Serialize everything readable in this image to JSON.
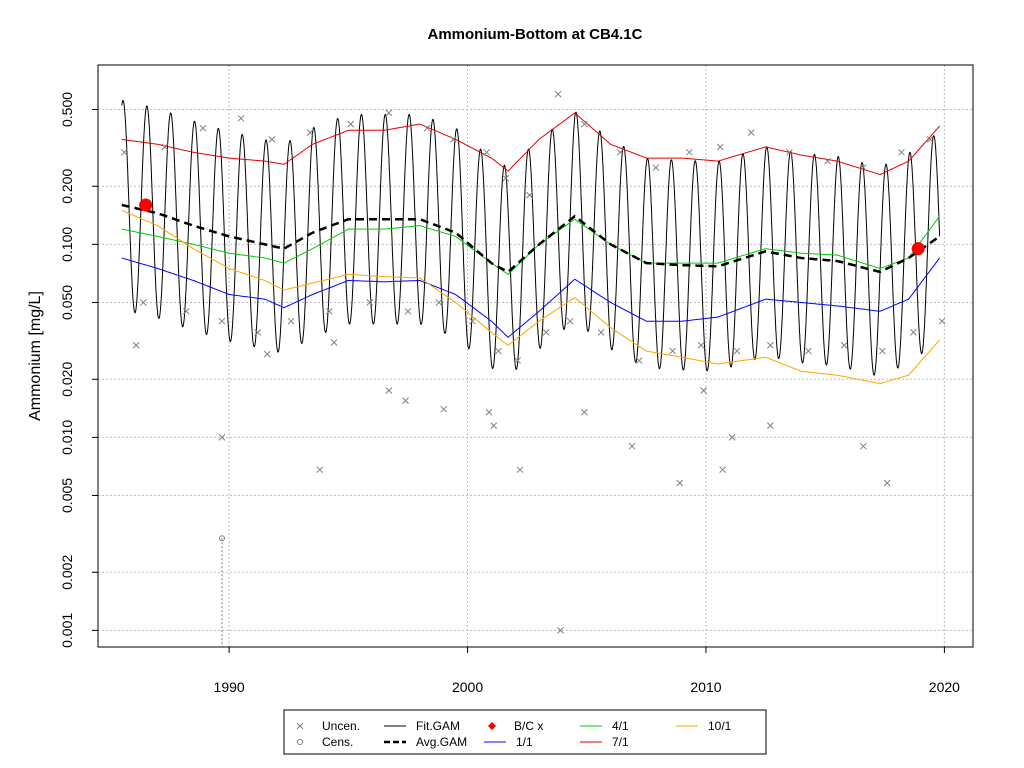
{
  "chart_data": {
    "type": "scatter",
    "title": "Ammonium-Bottom at CB4.1C",
    "xlabel": "",
    "ylabel": "Ammonium [mg/L]",
    "y_scale": "log",
    "xlim": [
      1984.5,
      2021.2
    ],
    "ylim": [
      0.00082,
      0.85
    ],
    "x_ticks": [
      1990,
      2000,
      2010,
      2020
    ],
    "y_ticks": [
      0.001,
      0.002,
      0.005,
      0.01,
      0.02,
      0.05,
      0.1,
      0.2,
      0.5
    ],
    "y_tick_labels": [
      "0.001",
      "0.002",
      "0.005",
      "0.010",
      "0.020",
      "0.050",
      "0.100",
      "0.200",
      "0.500"
    ],
    "grid": true,
    "legend_position": "bottom",
    "colors": {
      "uncen": "#7f7f7f",
      "cens": "#7f7f7f",
      "fit_gam": "#000000",
      "avg_gam": "#000000",
      "bc": "#ff0000",
      "d0101": "#0000ff",
      "d0401": "#00cc00",
      "d0701": "#e00000",
      "d1001": "#ffa500"
    },
    "legend": [
      {
        "label": "Uncen.",
        "symbol": "x",
        "color": "#7f7f7f"
      },
      {
        "label": "Cens.",
        "symbol": "circle",
        "color": "#7f7f7f"
      },
      {
        "label": "Fit.GAM",
        "symbol": "line",
        "color": "#000000"
      },
      {
        "label": "Avg.GAM",
        "symbol": "dashed",
        "color": "#000000"
      },
      {
        "label": "B/C x",
        "symbol": "diamond",
        "color": "#ff0000"
      },
      {
        "label": "1/1",
        "symbol": "line",
        "color": "#0000ff"
      },
      {
        "label": "4/1",
        "symbol": "line",
        "color": "#00cc00"
      },
      {
        "label": "7/1",
        "symbol": "line",
        "color": "#e00000"
      },
      {
        "label": "10/1",
        "symbol": "line",
        "color": "#ffa500"
      }
    ],
    "series": [
      {
        "name": "7/1",
        "x": [
          1985.5,
          1987,
          1988.5,
          1990,
          1991.5,
          1992.3,
          1993.5,
          1995,
          1996.5,
          1998,
          1999.5,
          2001,
          2001.7,
          2003,
          2004.5,
          2006,
          2007.5,
          2009,
          2010.5,
          2012.5,
          2014,
          2015.5,
          2017.3,
          2018.5,
          2019.8
        ],
        "y": [
          0.35,
          0.33,
          0.3,
          0.28,
          0.27,
          0.26,
          0.33,
          0.39,
          0.39,
          0.42,
          0.35,
          0.28,
          0.24,
          0.35,
          0.48,
          0.33,
          0.28,
          0.28,
          0.27,
          0.32,
          0.29,
          0.27,
          0.23,
          0.27,
          0.41
        ]
      },
      {
        "name": "4/1",
        "x": [
          1985.5,
          1987,
          1988.5,
          1990,
          1991.5,
          1992.3,
          1993.5,
          1995,
          1996.5,
          1998,
          1999.5,
          2001,
          2001.7,
          2003,
          2004.5,
          2006,
          2007.5,
          2009,
          2010.5,
          2012.5,
          2014,
          2015.5,
          2017.3,
          2018.5,
          2019.8
        ],
        "y": [
          0.12,
          0.11,
          0.1,
          0.09,
          0.085,
          0.08,
          0.095,
          0.12,
          0.12,
          0.125,
          0.11,
          0.08,
          0.07,
          0.1,
          0.135,
          0.1,
          0.08,
          0.08,
          0.08,
          0.095,
          0.09,
          0.088,
          0.075,
          0.085,
          0.14
        ]
      },
      {
        "name": "1/1",
        "x": [
          1985.5,
          1987,
          1988.5,
          1990,
          1991.5,
          1992.3,
          1993.5,
          1995,
          1996.5,
          1998,
          1999.5,
          2001,
          2001.7,
          2003,
          2004.5,
          2006,
          2007.5,
          2009,
          2010.5,
          2012.5,
          2014,
          2015.5,
          2017.3,
          2018.5,
          2019.8
        ],
        "y": [
          0.085,
          0.075,
          0.065,
          0.055,
          0.052,
          0.047,
          0.055,
          0.065,
          0.064,
          0.065,
          0.055,
          0.04,
          0.033,
          0.045,
          0.066,
          0.05,
          0.04,
          0.04,
          0.042,
          0.052,
          0.05,
          0.048,
          0.045,
          0.052,
          0.085
        ]
      },
      {
        "name": "10/1",
        "x": [
          1985.5,
          1987,
          1988.5,
          1990,
          1991.5,
          1992.3,
          1993.5,
          1995,
          1996.5,
          1998,
          1999.5,
          2001,
          2001.7,
          2003,
          2004.5,
          2006,
          2007.5,
          2009,
          2010.5,
          2012.5,
          2014,
          2015.5,
          2017.3,
          2018.5,
          2019.8
        ],
        "y": [
          0.15,
          0.125,
          0.095,
          0.075,
          0.065,
          0.058,
          0.063,
          0.07,
          0.068,
          0.067,
          0.05,
          0.035,
          0.03,
          0.04,
          0.053,
          0.037,
          0.028,
          0.026,
          0.024,
          0.026,
          0.022,
          0.021,
          0.019,
          0.021,
          0.032
        ]
      },
      {
        "name": "Avg.GAM",
        "x": [
          1985.5,
          1987,
          1988.5,
          1990,
          1991.5,
          1992.3,
          1993.5,
          1995,
          1996.5,
          1998,
          1999.5,
          2001,
          2001.7,
          2003,
          2004.5,
          2006,
          2007.5,
          2009,
          2010.5,
          2012.5,
          2014,
          2015.5,
          2017.3,
          2018.5,
          2019.8
        ],
        "y": [
          0.16,
          0.145,
          0.125,
          0.11,
          0.1,
          0.095,
          0.115,
          0.135,
          0.135,
          0.135,
          0.115,
          0.08,
          0.072,
          0.1,
          0.14,
          0.1,
          0.08,
          0.078,
          0.077,
          0.092,
          0.085,
          0.082,
          0.072,
          0.085,
          0.11
        ]
      },
      {
        "name": "Fit.GAM",
        "x": [
          1985.5,
          1987,
          1988.5,
          1990,
          1991.5,
          1992.3,
          1993.5,
          1995,
          1996.5,
          1998,
          1999.5,
          2001,
          2001.7,
          2003,
          2004.5,
          2006,
          2007.5,
          2009,
          2010.5,
          2012.5,
          2014,
          2015.5,
          2017.3,
          2018.5,
          2019.8
        ],
        "y": [
          0.16,
          0.145,
          0.125,
          0.11,
          0.1,
          0.095,
          0.115,
          0.135,
          0.135,
          0.135,
          0.115,
          0.08,
          0.072,
          0.1,
          0.14,
          0.1,
          0.08,
          0.078,
          0.077,
          0.092,
          0.085,
          0.082,
          0.072,
          0.085,
          0.11
        ],
        "seasonal": true
      },
      {
        "name": "B/C x",
        "x": [
          1986.5,
          2018.9
        ],
        "y": [
          0.16,
          0.095
        ]
      },
      {
        "name": "Cens.",
        "x": [
          1989.7
        ],
        "y": [
          0.003
        ]
      },
      {
        "name": "Uncen.",
        "x": [
          1985.6,
          1986.4,
          1987.3,
          1988.2,
          1988.9,
          1989.7,
          1990.5,
          1991.2,
          1991.8,
          1992.6,
          1993.4,
          1994.2,
          1995.1,
          1995.9,
          1996.7,
          1997.5,
          1998.3,
          1998.8,
          1999.4,
          2000.2,
          2000.8,
          2001.3,
          2001.6,
          2002.1,
          2002.6,
          2003.3,
          2003.8,
          2004.3,
          2004.9,
          2005.6,
          2006.4,
          2007.2,
          2007.9,
          2008.6,
          2009.3,
          2009.8,
          2010.6,
          2011.3,
          2011.9,
          2012.7,
          2013.5,
          2014.3,
          2015.1,
          2015.8,
          2016.6,
          2017.4,
          2018.2,
          2018.7,
          2019.4,
          2019.9,
          1989.7,
          1993.8,
          1997.4,
          2000.9,
          2002.2,
          2004.9,
          2008.9,
          2009.9,
          2010.7,
          2011.1,
          2012.7,
          2016.6,
          2017.6,
          2003.9,
          1986.1,
          1991.6,
          1994.4,
          1996.7,
          1999.0,
          2001.1,
          2006.9
        ],
        "y": [
          0.3,
          0.05,
          0.32,
          0.045,
          0.4,
          0.04,
          0.45,
          0.035,
          0.35,
          0.04,
          0.38,
          0.045,
          0.42,
          0.05,
          0.48,
          0.045,
          0.4,
          0.05,
          0.35,
          0.04,
          0.3,
          0.028,
          0.22,
          0.025,
          0.18,
          0.035,
          0.6,
          0.04,
          0.42,
          0.035,
          0.3,
          0.025,
          0.25,
          0.028,
          0.3,
          0.03,
          0.32,
          0.028,
          0.38,
          0.03,
          0.3,
          0.028,
          0.27,
          0.03,
          0.25,
          0.028,
          0.3,
          0.035,
          0.35,
          0.04,
          0.01,
          0.0068,
          0.0155,
          0.0135,
          0.0068,
          0.0135,
          0.0058,
          0.0175,
          0.0068,
          0.01,
          0.0115,
          0.009,
          0.0058,
          0.001,
          0.03,
          0.027,
          0.031,
          0.0175,
          0.014,
          0.0115,
          0.009
        ]
      }
    ]
  }
}
